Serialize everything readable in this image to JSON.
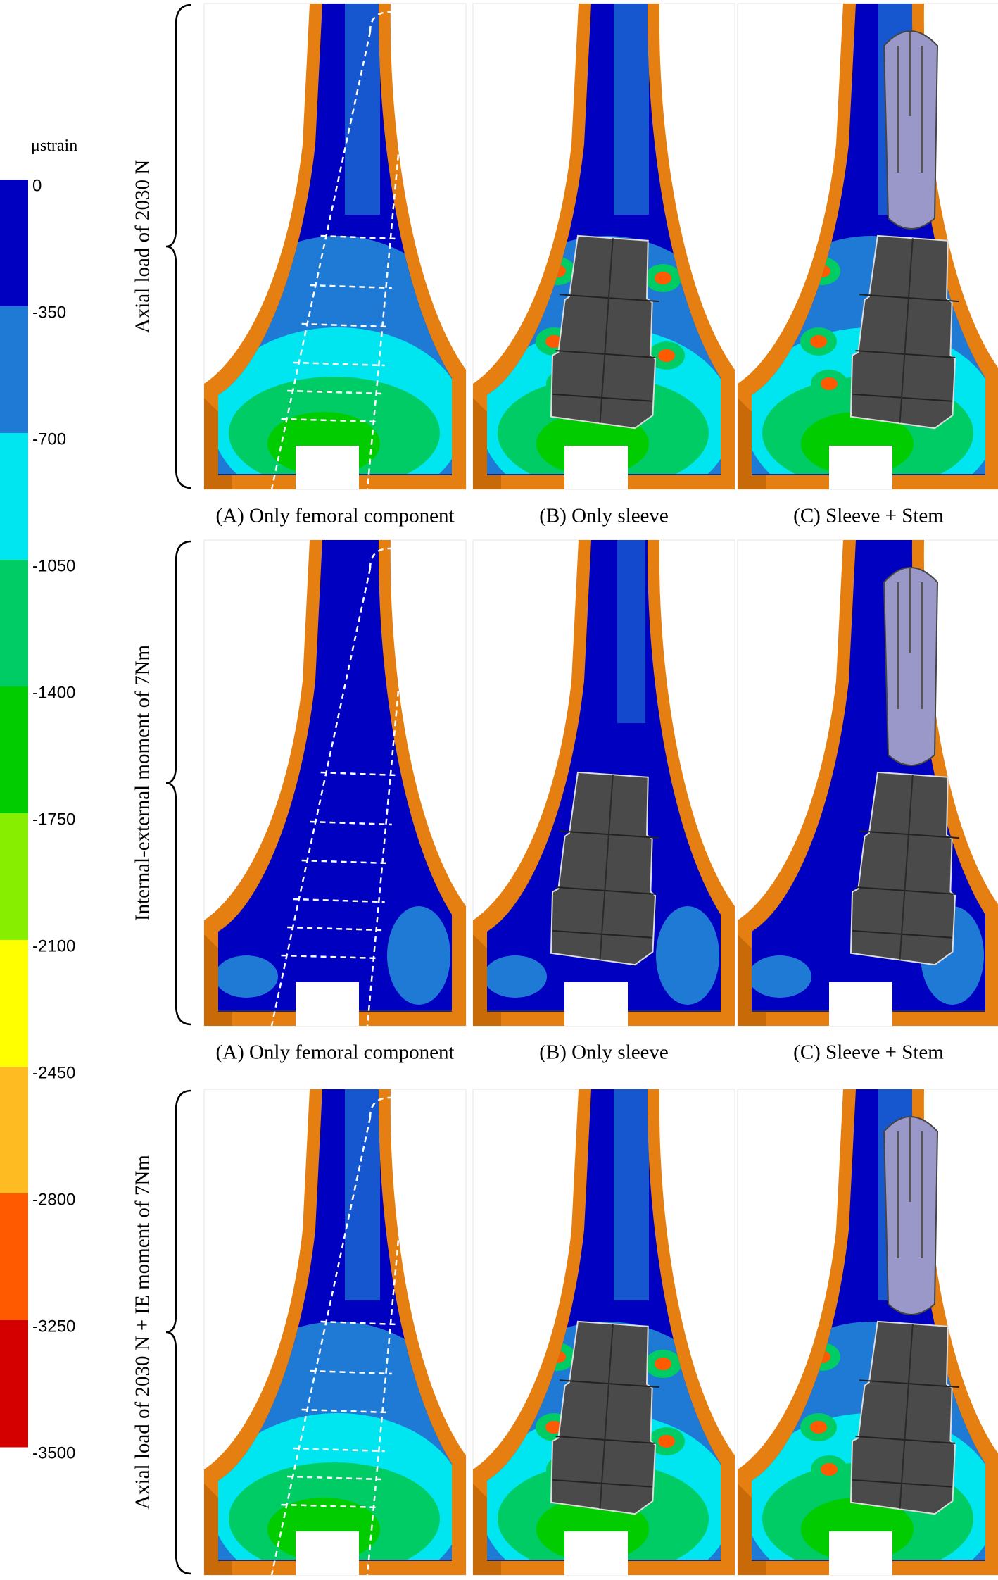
{
  "legend": {
    "title": "μstrain",
    "ticks": [
      0,
      -350,
      -700,
      -1050,
      -1400,
      -1750,
      -2100,
      -2450,
      -2800,
      -3250,
      -3500
    ],
    "colors": [
      "#0000c0",
      "#1f7ad6",
      "#00e6f0",
      "#00cc66",
      "#00cc00",
      "#88ee00",
      "#ffff00",
      "#ffbb22",
      "#ff5a00",
      "#d40000"
    ]
  },
  "rows": [
    {
      "label": "Axial load of 2030 N",
      "captions": [
        "(A) Only femoral component",
        "(B) Only sleeve",
        "(C) Sleeve + Stem"
      ]
    },
    {
      "label": "Internal-external moment of 7Nm",
      "captions": [
        "(A) Only femoral component",
        "(B) Only sleeve",
        "(C) Sleeve + Stem"
      ]
    },
    {
      "label": "Axial load of 2030 N + IE moment of 7Nm"
    }
  ]
}
